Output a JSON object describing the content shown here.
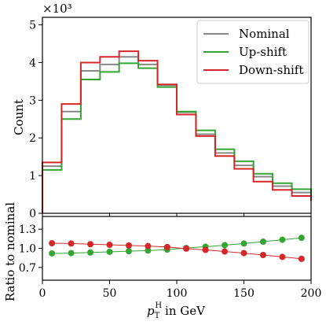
{
  "chart_data": [
    {
      "type": "step",
      "ylabel": "Count",
      "y_multiplier": "×10³",
      "xlim": [
        0,
        200
      ],
      "ylim": [
        0,
        5200
      ],
      "yticks": [
        0,
        1000,
        2000,
        3000,
        4000,
        5000
      ],
      "ytick_labels": [
        "0",
        "1",
        "2",
        "3",
        "4",
        "5"
      ],
      "bin_edges": [
        0,
        14.3,
        28.6,
        42.9,
        57.1,
        71.4,
        85.7,
        100,
        114.3,
        128.6,
        142.9,
        157.1,
        171.4,
        185.7,
        200
      ],
      "legend_position": "top-right",
      "series": [
        {
          "name": "Nominal",
          "color": "#888888",
          "values": [
            1250,
            2700,
            3780,
            3950,
            4150,
            3950,
            3400,
            2680,
            2100,
            1600,
            1270,
            970,
            720,
            550,
            400
          ]
        },
        {
          "name": "Up-shift",
          "color": "#33a532",
          "values": [
            1150,
            2500,
            3550,
            3750,
            3980,
            3850,
            3350,
            2700,
            2200,
            1700,
            1380,
            1050,
            800,
            640,
            480
          ]
        },
        {
          "name": "Down-shift",
          "color": "#d62728",
          "values": [
            1350,
            2900,
            4000,
            4150,
            4300,
            4050,
            3420,
            2620,
            2050,
            1520,
            1180,
            840,
            620,
            460,
            330
          ]
        }
      ]
    },
    {
      "type": "line",
      "xlabel": "p_T^H in GeV",
      "ylabel": "Ratio to nominal",
      "xlim": [
        0,
        200
      ],
      "ylim": [
        0.5,
        1.5
      ],
      "xticks": [
        0,
        50,
        100,
        150,
        200
      ],
      "xtick_labels": [
        "0",
        "50",
        "100",
        "150",
        "200"
      ],
      "yticks": [
        0.7,
        1.0,
        1.3
      ],
      "ytick_labels": [
        "0.7",
        "1.0",
        "1.3"
      ],
      "x": [
        7.1,
        21.4,
        35.7,
        50,
        64.3,
        78.6,
        92.9,
        107.1,
        121.4,
        135.7,
        150,
        164.3,
        178.6,
        192.9
      ],
      "series": [
        {
          "name": "Up-shift",
          "color": "#33a532",
          "values": [
            0.92,
            0.925,
            0.935,
            0.945,
            0.955,
            0.965,
            0.98,
            1.005,
            1.025,
            1.05,
            1.075,
            1.105,
            1.135,
            1.165
          ]
        },
        {
          "name": "Down-shift",
          "color": "#d62728",
          "values": [
            1.08,
            1.075,
            1.065,
            1.055,
            1.045,
            1.035,
            1.02,
            0.995,
            0.975,
            0.95,
            0.925,
            0.895,
            0.865,
            0.835
          ]
        }
      ]
    }
  ]
}
